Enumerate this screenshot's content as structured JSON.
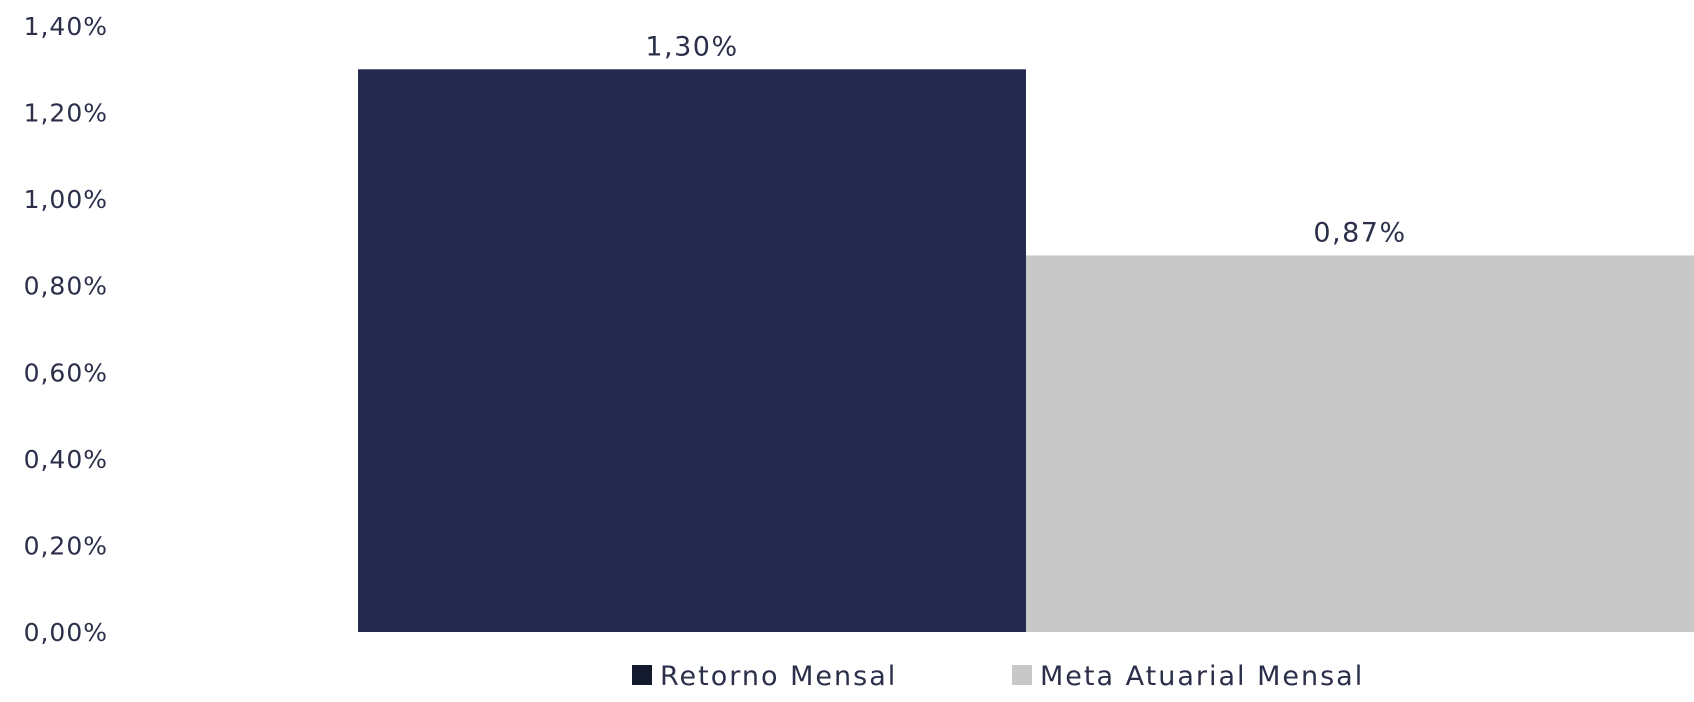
{
  "chart_data": {
    "type": "bar",
    "categories": [
      ""
    ],
    "series": [
      {
        "name": "Retorno Mensal",
        "values": [
          1.3
        ],
        "data_label": "1,30%",
        "color": "#232a4d"
      },
      {
        "name": "Meta Atuarial Mensal",
        "values": [
          0.87
        ],
        "data_label": "0,87%",
        "color": "#c8c8c8"
      }
    ],
    "ylim": [
      0,
      1.4
    ],
    "yticks": [
      {
        "value": 0.0,
        "label": "0,00%"
      },
      {
        "value": 0.2,
        "label": "0,20%"
      },
      {
        "value": 0.4,
        "label": "0,40%"
      },
      {
        "value": 0.6,
        "label": "0,60%"
      },
      {
        "value": 0.8,
        "label": "0,80%"
      },
      {
        "value": 1.0,
        "label": "1,00%"
      },
      {
        "value": 1.2,
        "label": "1,20%"
      },
      {
        "value": 1.4,
        "label": "1,40%"
      }
    ],
    "title": "",
    "xlabel": "",
    "ylabel": "",
    "grid": false,
    "legend_position": "bottom",
    "legend_marker_colors": [
      "#141a2e",
      "#c8c8c8"
    ]
  }
}
